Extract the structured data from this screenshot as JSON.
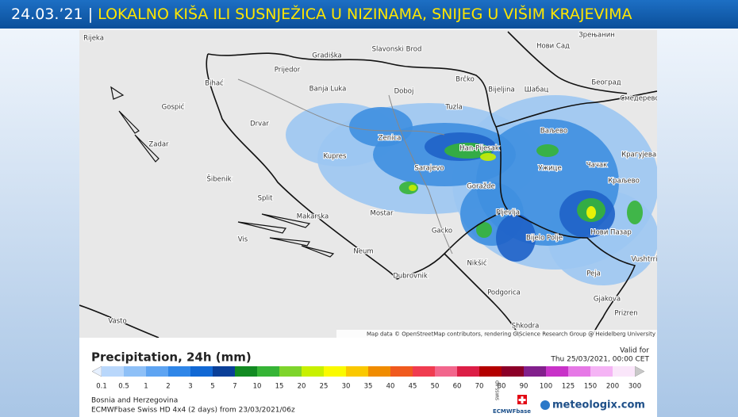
{
  "banner": {
    "date": "24.03.’21",
    "separator": "|",
    "headline": "LOKALNO KIŠA ILI SUSNJEŽICA U NIZINAMA, SNIJEG U VIŠIM KRAJEVIMA"
  },
  "map": {
    "places": [
      "Rijeka",
      "Slavonski Brod",
      "Gradiška",
      "Нови Сад",
      "Зрењанин",
      "Prijedor",
      "Bihać",
      "Banja Luka",
      "Brčko",
      "Bijeljina",
      "Шабац",
      "Београд",
      "Смедерево",
      "Gospić",
      "Doboj",
      "Tuzla",
      "Drvar",
      "Ваљево",
      "Zenica",
      "Han-Pijesak",
      "Zadar",
      "Kupres",
      "Крагујевац",
      "Sarajevo",
      "Ужице",
      "Чачак",
      "Šibenik",
      "Goražde",
      "Краљево",
      "Split",
      "Pljevlja",
      "Makarska",
      "Mostar",
      "Bijelo Polje",
      "Нови Пазар",
      "Gacko",
      "Vis",
      "Neum",
      "Nikšić",
      "Vushtrri",
      "Dubrovnik",
      "Peja",
      "Podgorica",
      "Gjakova",
      "Prizren",
      "Vasto",
      "Shkodra"
    ],
    "attribution": "Map data © OpenStreetMap contributors, rendering GIScience Research Group @ Heidelberg University"
  },
  "legend": {
    "title": "Precipitation, 24h (mm)",
    "valid_label": "Valid for",
    "valid_time": "Thu 25/03/2021, 00:00 CET",
    "ticks": [
      "0.1",
      "0.5",
      "1",
      "2",
      "3",
      "5",
      "7",
      "10",
      "15",
      "20",
      "25",
      "30",
      "35",
      "40",
      "45",
      "50",
      "60",
      "70",
      "80",
      "90",
      "100",
      "125",
      "150",
      "200",
      "300"
    ],
    "region": "Bosnia and Herzegovina",
    "model": "ECMWFbase Swiss HD 4x4 (2 days) from 23/03/2021/06z",
    "logo_swiss": "SWISS HD",
    "logo_ecmwf": "ECMWFbase",
    "logo_site": "meteologix.com"
  }
}
